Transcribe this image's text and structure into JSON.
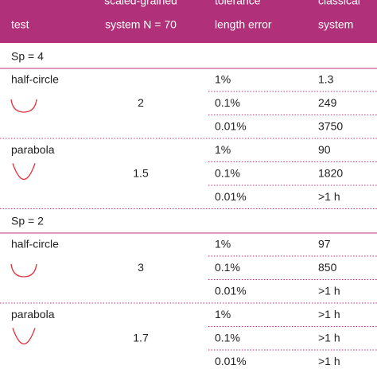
{
  "header": {
    "columns": [
      {
        "top": "",
        "bottom": "test"
      },
      {
        "top": "scaled-grained",
        "bottom": "system N = 70"
      },
      {
        "top": "tolerance",
        "bottom": "length error"
      },
      {
        "top": "classical",
        "bottom": "system"
      }
    ]
  },
  "sections": [
    {
      "label": "Sp = 4",
      "groups": [
        {
          "test": "half-circle",
          "shape": "half-circle",
          "middle": "2",
          "rows": [
            [
              "1%",
              "1.3"
            ],
            [
              "0.1%",
              "249"
            ],
            [
              "0.01%",
              "3750"
            ]
          ]
        },
        {
          "test": "parabola",
          "shape": "parabola",
          "middle": "1.5",
          "rows": [
            [
              "1%",
              "90"
            ],
            [
              "0.1%",
              "1820"
            ],
            [
              "0.01%",
              ">1 h"
            ]
          ]
        }
      ]
    },
    {
      "label": "Sp = 2",
      "groups": [
        {
          "test": "half-circle",
          "shape": "half-circle",
          "middle": "3",
          "rows": [
            [
              "1%",
              "97"
            ],
            [
              "0.1%",
              "850"
            ],
            [
              "0.01%",
              ">1 h"
            ]
          ]
        },
        {
          "test": "parabola",
          "shape": "parabola",
          "middle": "1.7",
          "rows": [
            [
              "1%",
              ">1 h"
            ],
            [
              "0.1%",
              ">1 h"
            ],
            [
              "0.01%",
              ">1 h"
            ]
          ]
        }
      ]
    }
  ]
}
